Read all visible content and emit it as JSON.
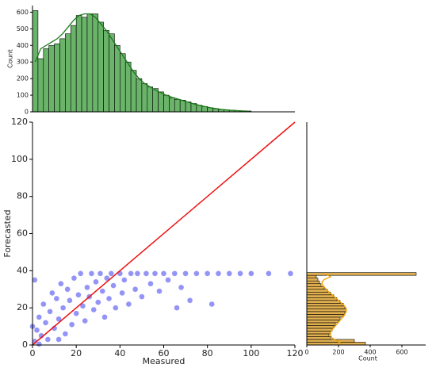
{
  "chart_data": [
    {
      "type": "scatter",
      "xlabel": "Measured",
      "ylabel": "Forecasted",
      "xlim": [
        0,
        120
      ],
      "ylim": [
        0,
        120
      ],
      "xticks": [
        0,
        20,
        40,
        60,
        80,
        100,
        120
      ],
      "yticks": [
        0,
        20,
        40,
        60,
        80,
        100,
        120
      ],
      "color": "#2a2aee",
      "x": [
        1,
        2,
        3,
        4,
        5,
        6,
        7,
        8,
        9,
        10,
        11,
        12,
        13,
        14,
        15,
        16,
        17,
        18,
        19,
        20,
        21,
        22,
        23,
        24,
        25,
        26,
        27,
        28,
        29,
        30,
        31,
        32,
        33,
        34,
        35,
        36,
        37,
        38,
        40,
        41,
        42,
        44,
        45,
        47,
        48,
        50,
        52,
        54,
        56,
        58,
        60,
        62,
        65,
        68,
        70,
        72,
        75,
        80,
        85,
        90,
        95,
        100,
        108,
        118,
        82,
        66,
        3,
        0,
        1,
        12
      ],
      "values": [
        2,
        8,
        15,
        5,
        22,
        12,
        3,
        18,
        28,
        9,
        25,
        14,
        33,
        20,
        6,
        30,
        24,
        11,
        36,
        17,
        27,
        38.5,
        21,
        13,
        31,
        26,
        38.5,
        19,
        34,
        23,
        38.5,
        29,
        15,
        36,
        25,
        38.5,
        32,
        20,
        38.5,
        28,
        35,
        22,
        38.5,
        30,
        38.5,
        26,
        38.5,
        33,
        38.5,
        29,
        38.5,
        35,
        38.5,
        31,
        38.5,
        24,
        38.5,
        38.5,
        38.5,
        38.5,
        38.5,
        38.5,
        38.5,
        38.5,
        22,
        20,
        0.5,
        10,
        35,
        3
      ],
      "reference_line": {
        "x": [
          0,
          120
        ],
        "values": [
          0,
          120
        ],
        "color": "#ee1111"
      }
    },
    {
      "type": "histogram",
      "ylabel": "Count",
      "xlim": [
        0,
        120
      ],
      "ylim": [
        0,
        640
      ],
      "yticks": [
        0,
        100,
        200,
        300,
        400,
        500,
        600
      ],
      "color": "#6ab46a",
      "kde_color": "#1a7a1a",
      "bins": [
        0,
        2.5,
        5,
        7.5,
        10,
        12.5,
        15,
        17.5,
        20,
        22.5,
        25,
        27.5,
        30,
        32.5,
        35,
        37.5,
        40,
        42.5,
        45,
        47.5,
        50,
        52.5,
        55,
        57.5,
        60,
        62.5,
        65,
        67.5,
        70,
        72.5,
        75,
        77.5,
        80,
        82.5,
        85,
        87.5,
        90,
        92.5,
        95,
        97.5,
        100
      ],
      "values": [
        610,
        320,
        380,
        400,
        410,
        440,
        470,
        520,
        580,
        570,
        590,
        590,
        540,
        490,
        470,
        400,
        350,
        300,
        250,
        200,
        170,
        150,
        140,
        120,
        100,
        85,
        75,
        70,
        60,
        50,
        40,
        32,
        25,
        20,
        15,
        12,
        10,
        8,
        6,
        5
      ],
      "kde": [
        300,
        380,
        400,
        420,
        440,
        470,
        510,
        550,
        580,
        590,
        590,
        570,
        530,
        490,
        440,
        390,
        340,
        290,
        240,
        200,
        170,
        150,
        130,
        115,
        100,
        88,
        78,
        68,
        58,
        48,
        40,
        32,
        25,
        20,
        15,
        12,
        9,
        7,
        5,
        4
      ]
    },
    {
      "type": "histogram",
      "orientation": "horizontal",
      "xlabel": "Count",
      "xlim": [
        0,
        750
      ],
      "ylim": [
        0,
        120
      ],
      "xticks": [
        0,
        200,
        400,
        600
      ],
      "color": "#e0b050",
      "kde_color": "#f0a000",
      "bins": [
        0,
        1.5,
        3,
        4.5,
        6,
        7.5,
        9,
        10.5,
        12,
        13.5,
        15,
        16.5,
        18,
        19.5,
        21,
        22.5,
        24,
        25.5,
        27,
        28.5,
        30,
        31.5,
        33,
        34.5,
        36,
        37.5,
        39
      ],
      "values": [
        370,
        300,
        150,
        140,
        150,
        160,
        170,
        180,
        200,
        210,
        230,
        240,
        250,
        240,
        230,
        210,
        190,
        170,
        150,
        130,
        110,
        90,
        80,
        70,
        60,
        690
      ],
      "kde": [
        220,
        190,
        160,
        150,
        150,
        160,
        175,
        190,
        205,
        220,
        235,
        245,
        250,
        245,
        230,
        210,
        190,
        170,
        150,
        130,
        115,
        100,
        95,
        110,
        150,
        120
      ]
    }
  ]
}
